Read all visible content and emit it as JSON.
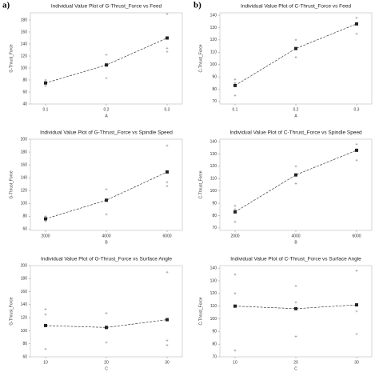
{
  "labels": [
    "a)",
    "b)"
  ],
  "chart_data": [
    {
      "type": "individual_value",
      "title": "Individual Value Plot of G-Thrust_Force vs Feed",
      "xlabel": "A",
      "ylabel": "G-Thrust_Force",
      "categories": [
        0.1,
        0.2,
        0.3
      ],
      "values": [
        75,
        105,
        150
      ],
      "points": [
        [
          80,
          77,
          70
        ],
        [
          122,
          107,
          83
        ],
        [
          190,
          133,
          127
        ]
      ],
      "ylim": [
        40,
        192
      ],
      "yticks": [
        40,
        60,
        80,
        100,
        120,
        140,
        160,
        180
      ],
      "color": "#888888",
      "mean_color": "#222222"
    },
    {
      "type": "individual_value",
      "title": "Individual Value Plot of C-Thrust_Force vs Feed",
      "xlabel": "A",
      "ylabel": "C-Thrust_Force",
      "categories": [
        0.1,
        0.2,
        0.3
      ],
      "values": [
        83,
        113,
        133
      ],
      "points": [
        [
          88,
          85,
          75
        ],
        [
          120,
          113,
          106
        ],
        [
          138,
          133,
          125
        ]
      ],
      "ylim": [
        68,
        142
      ],
      "yticks": [
        70,
        80,
        90,
        100,
        110,
        120,
        130,
        140
      ],
      "color": "#888888",
      "mean_color": "#222222"
    },
    {
      "type": "individual_value",
      "title": "Individual Value Plot of G-Thrust_Force vs Spindle Speed",
      "xlabel": "B",
      "ylabel": "G-Thrust_Force",
      "categories": [
        2000,
        4000,
        6000
      ],
      "values": [
        76,
        105,
        149
      ],
      "points": [
        [
          80,
          76,
          72
        ],
        [
          122,
          106,
          83
        ],
        [
          190,
          133,
          127
        ]
      ],
      "ylim": [
        58,
        200
      ],
      "yticks": [
        60,
        80,
        100,
        120,
        140,
        160,
        180,
        200
      ],
      "color": "#888888",
      "mean_color": "#222222"
    },
    {
      "type": "individual_value",
      "title": "Individual Value Plot of C-Thrust_Force vs Spindle Speed",
      "xlabel": "B",
      "ylabel": "C-Thrust_Force",
      "categories": [
        2000,
        4000,
        6000
      ],
      "values": [
        83,
        113,
        133
      ],
      "points": [
        [
          88,
          85,
          75
        ],
        [
          120,
          113,
          106
        ],
        [
          138,
          133,
          125
        ]
      ],
      "ylim": [
        68,
        142
      ],
      "yticks": [
        70,
        80,
        90,
        100,
        110,
        120,
        130,
        140
      ],
      "color": "#888888",
      "mean_color": "#222222"
    },
    {
      "type": "individual_value",
      "title": "Individual Value Plot of G-Thrust_Force vs Surface Angle",
      "xlabel": "C",
      "ylabel": "G-Thrust_Force",
      "categories": [
        10,
        20,
        30
      ],
      "values": [
        108,
        105,
        117
      ],
      "points": [
        [
          133,
          125,
          72
        ],
        [
          127,
          107,
          82
        ],
        [
          190,
          85,
          78
        ]
      ],
      "ylim": [
        60,
        200
      ],
      "yticks": [
        60,
        80,
        100,
        120,
        140,
        160,
        180,
        200
      ],
      "color": "#888888",
      "mean_color": "#222222"
    },
    {
      "type": "individual_value",
      "title": "Individual Value Plot of C-Thrust_Force vs Surface Angle",
      "xlabel": "C",
      "ylabel": "C-Thrust_Force",
      "categories": [
        10,
        20,
        30
      ],
      "values": [
        110,
        108,
        111
      ],
      "points": [
        [
          135,
          120,
          75
        ],
        [
          126,
          113,
          86
        ],
        [
          138,
          106,
          88
        ]
      ],
      "ylim": [
        70,
        142
      ],
      "yticks": [
        70,
        80,
        90,
        100,
        110,
        120,
        130,
        140
      ],
      "color": "#888888",
      "mean_color": "#222222"
    }
  ]
}
